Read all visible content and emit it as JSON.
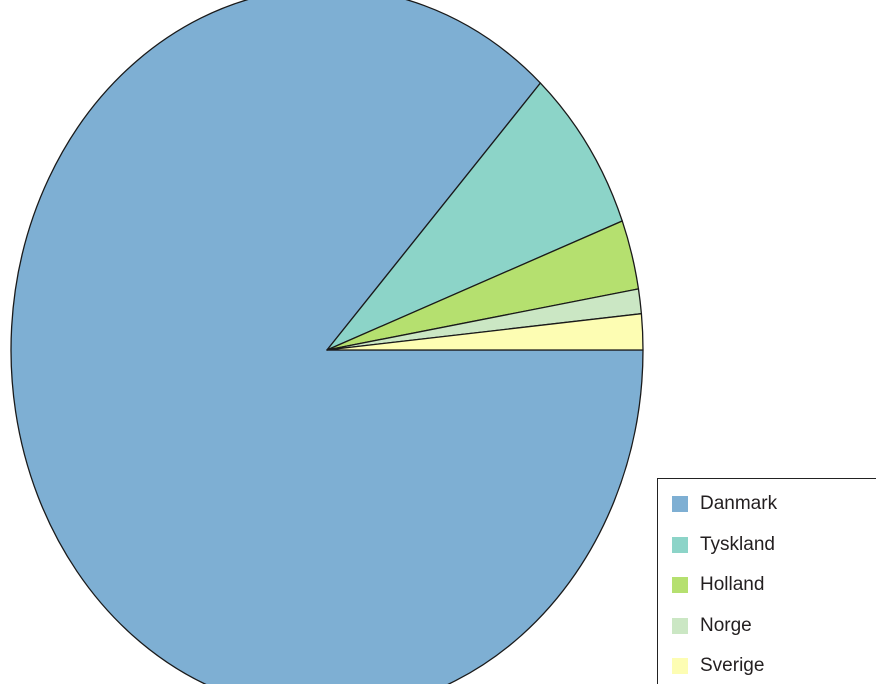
{
  "chart_data": {
    "type": "pie",
    "title": "",
    "slices": [
      {
        "label": "Danmark",
        "value": 86.8,
        "color": "#7eafd3"
      },
      {
        "label": "Tyskland",
        "value": 7.4,
        "color": "#8cd4c8"
      },
      {
        "label": "Holland",
        "value": 3.1,
        "color": "#b5e06f"
      },
      {
        "label": "Norge",
        "value": 1.1,
        "color": "#cbe7c4"
      },
      {
        "label": "Sverige",
        "value": 1.6,
        "color": "#fdfdb3"
      }
    ],
    "start_angle_deg": 0,
    "direction": "clockwise",
    "legend_position": "bottom-right"
  }
}
